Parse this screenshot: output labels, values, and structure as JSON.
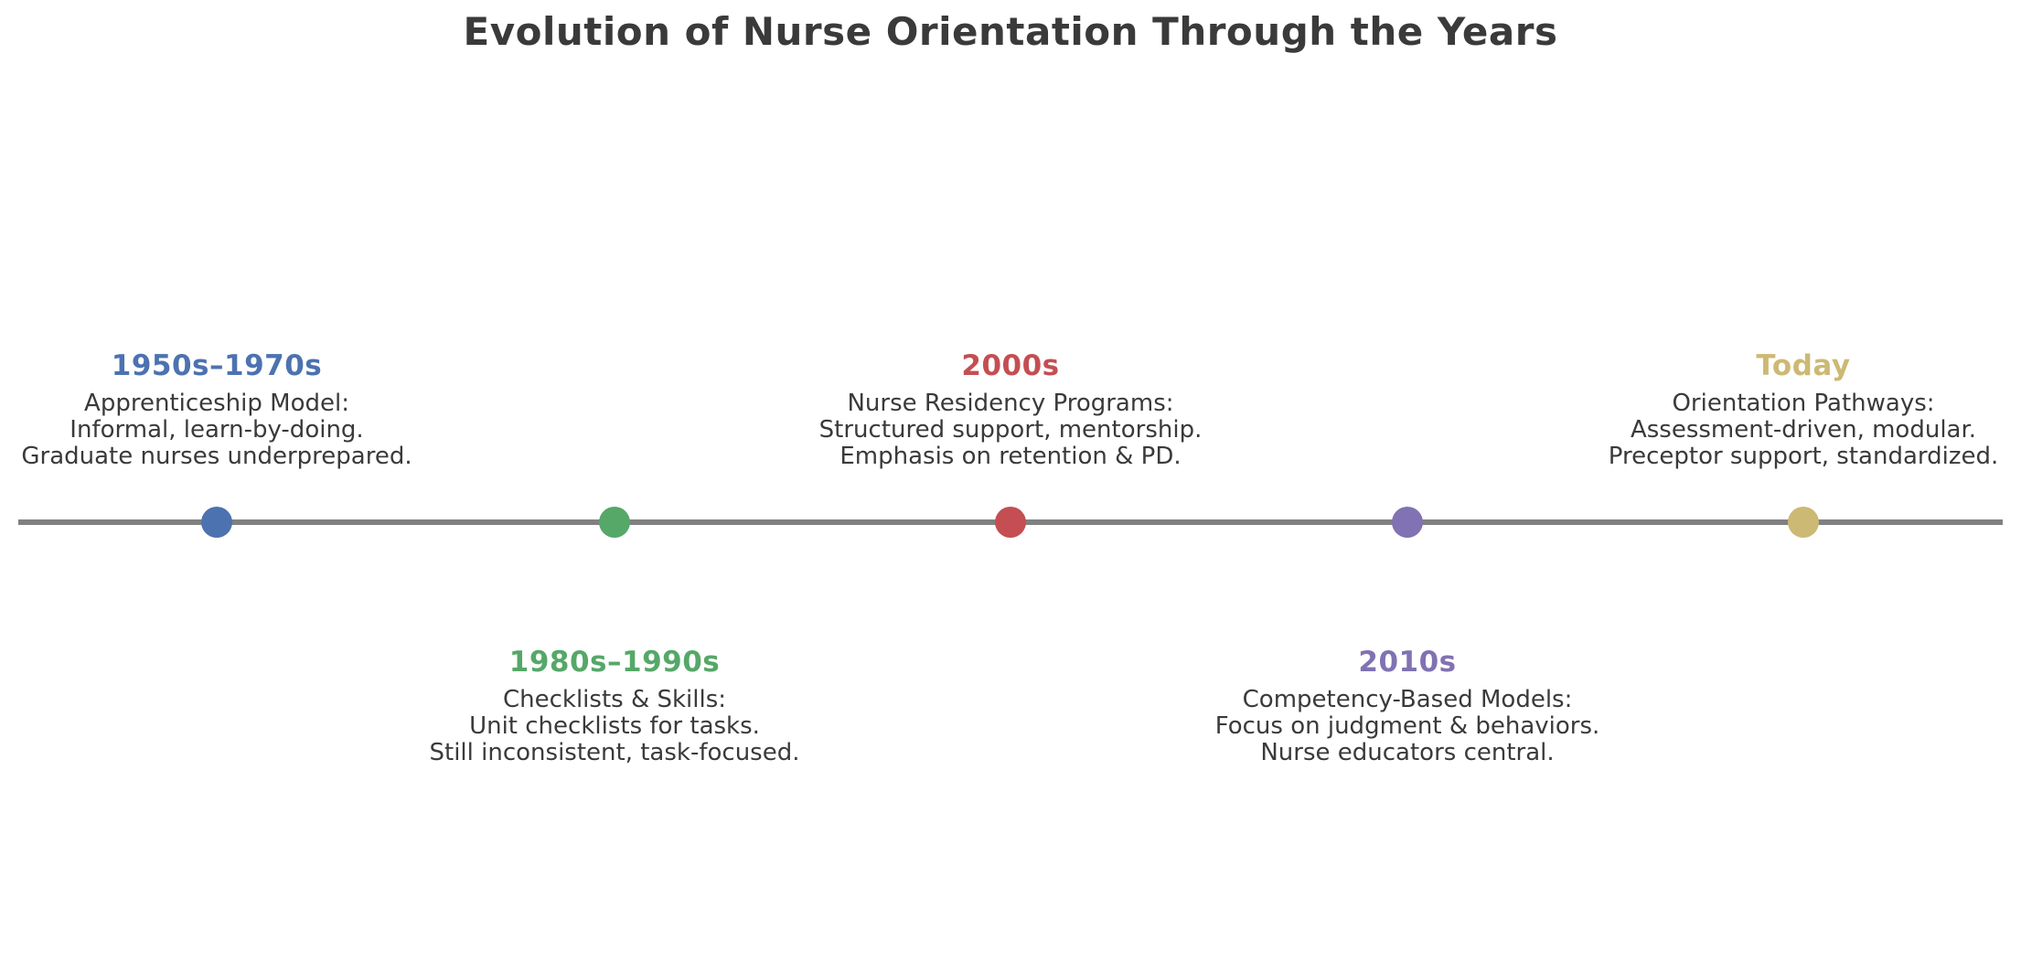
{
  "title": "Evolution of Nurse Orientation Through the Years",
  "text_color": "#3a3a3a",
  "timeline": {
    "line_color": "#808080",
    "milestones": [
      {
        "label": "1950s–1970s",
        "color": "#4C72B0",
        "side": "above",
        "lines": [
          "Apprenticeship Model:",
          "Informal, learn-by-doing.",
          "Graduate nurses underprepared."
        ]
      },
      {
        "label": "1980s–1990s",
        "color": "#55A868",
        "side": "below",
        "lines": [
          "Checklists & Skills:",
          "Unit checklists for tasks.",
          "Still inconsistent, task-focused."
        ]
      },
      {
        "label": "2000s",
        "color": "#C44E52",
        "side": "above",
        "lines": [
          "Nurse Residency Programs:",
          "Structured support, mentorship.",
          "Emphasis on retention & PD."
        ]
      },
      {
        "label": "2010s",
        "color": "#8172B3",
        "side": "below",
        "lines": [
          "Competency-Based Models:",
          "Focus on judgment & behaviors.",
          "Nurse educators central."
        ]
      },
      {
        "label": "Today",
        "color": "#CCB974",
        "side": "above",
        "lines": [
          "Orientation Pathways:",
          "Assessment-driven, modular.",
          "Preceptor support, standardized."
        ]
      }
    ]
  }
}
